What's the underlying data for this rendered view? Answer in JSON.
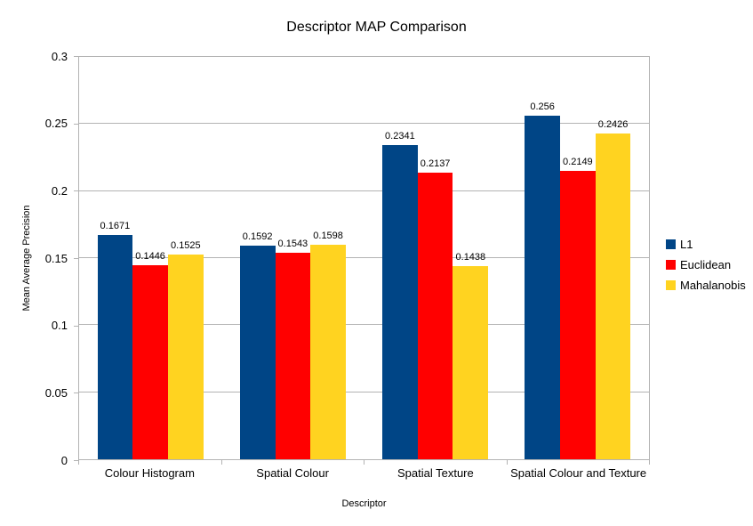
{
  "chart_data": {
    "type": "bar",
    "title": "Descriptor MAP Comparison",
    "xlabel": "Descriptor",
    "ylabel": "Mean Average Precision",
    "categories": [
      "Colour Histogram",
      "Spatial Colour",
      "Spatial Texture",
      "Spatial Colour and Texture"
    ],
    "series": [
      {
        "name": "L1",
        "color": "#004586",
        "values": [
          0.1671,
          0.1592,
          0.2341,
          0.256
        ],
        "labels": [
          "0.1671",
          "0.1592",
          "0.2341",
          "0.256"
        ]
      },
      {
        "name": "Euclidean",
        "color": "#FF0000",
        "values": [
          0.1446,
          0.1543,
          0.2137,
          0.2149
        ],
        "labels": [
          "0.1446",
          "0.1543",
          "0.2137",
          "0.2149"
        ]
      },
      {
        "name": "Mahalanobis",
        "color": "#FFD320",
        "values": [
          0.1525,
          0.1598,
          0.1438,
          0.2426
        ],
        "labels": [
          "0.1525",
          "0.1598",
          "0.1438",
          "0.2426"
        ]
      }
    ],
    "ylim": [
      0,
      0.3
    ],
    "yticks": [
      0,
      0.05,
      0.1,
      0.15,
      0.2,
      0.25,
      0.3
    ],
    "ytick_labels": [
      "0",
      "0.05",
      "0.1",
      "0.15",
      "0.2",
      "0.25",
      "0.3"
    ],
    "grid": true,
    "legend_position": "right",
    "axis_color": "#b3b3b3",
    "text_color": "#000000",
    "background_color": "#ffffff"
  }
}
